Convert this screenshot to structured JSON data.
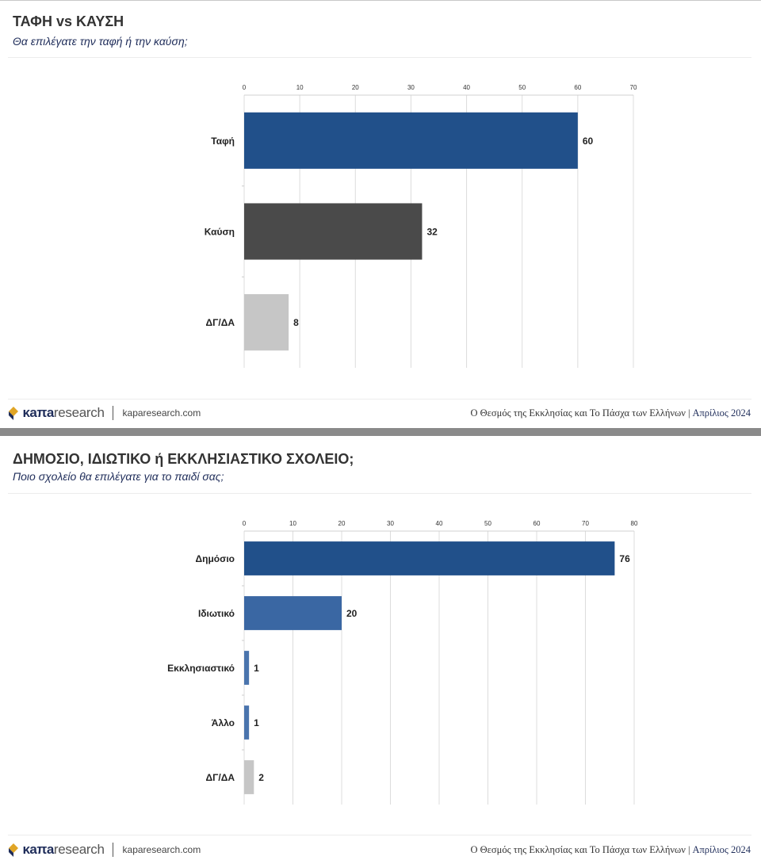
{
  "panels": [
    {
      "title": "ΤΑΦΗ vs ΚΑΥΣΗ",
      "subtitle": "Θα επιλέγατε την ταφή ή την καύση;",
      "footer": {
        "logo_kapa": "κaπa",
        "logo_research": "research",
        "url": "kaparesearch.com",
        "survey": "Ο Θεσμός της Εκκλησίας και Το Πάσχα των Ελλήνων",
        "separator": "|",
        "date": "Απρίλιος 2024"
      }
    },
    {
      "title": "ΔΗΜΟΣΙΟ, ΙΔΙΩΤΙΚΟ ή ΕΚΚΛΗΣΙΑΣΤΙΚΟ ΣΧΟΛΕΙΟ;",
      "subtitle": "Ποιο σχολείο θα επιλέγατε για το παιδί σας;",
      "footer": {
        "logo_kapa": "κaπa",
        "logo_research": "research",
        "url": "kaparesearch.com",
        "survey": "Ο Θεσμός της Εκκλησίας και Το Πάσχα των Ελλήνων",
        "separator": "|",
        "date": "Απρίλιος 2024"
      }
    }
  ],
  "chart_data": [
    {
      "type": "bar",
      "orientation": "horizontal",
      "title": "ΤΑΦΗ vs ΚΑΥΣΗ",
      "subtitle": "Θα επιλέγατε την ταφή ή την καύση;",
      "categories": [
        "Ταφή",
        "Καύση",
        "ΔΓ/ΔΑ"
      ],
      "values": [
        60,
        32,
        8
      ],
      "colors": [
        "#21508a",
        "#4a4a4a",
        "#c6c6c6"
      ],
      "xlim": [
        0,
        70
      ],
      "xticks": [
        0,
        10,
        20,
        30,
        40,
        50,
        60,
        70
      ],
      "x_axis_position": "top",
      "grid": true
    },
    {
      "type": "bar",
      "orientation": "horizontal",
      "title": "ΔΗΜΟΣΙΟ, ΙΔΙΩΤΙΚΟ ή ΕΚΚΛΗΣΙΑΣΤΙΚΟ ΣΧΟΛΕΙΟ;",
      "subtitle": "Ποιο σχολείο θα επιλέγατε για το παιδί σας;",
      "categories": [
        "Δημόσιο",
        "Ιδιωτικό",
        "Εκκλησιαστικό",
        "Άλλο",
        "ΔΓ/ΔΑ"
      ],
      "values": [
        76,
        20,
        1,
        1,
        2
      ],
      "colors": [
        "#21508a",
        "#3a67a3",
        "#4a74ad",
        "#4a74ad",
        "#c6c6c6"
      ],
      "xlim": [
        0,
        80
      ],
      "xticks": [
        0,
        10,
        20,
        30,
        40,
        50,
        60,
        70,
        80
      ],
      "x_axis_position": "top",
      "grid": true
    }
  ]
}
